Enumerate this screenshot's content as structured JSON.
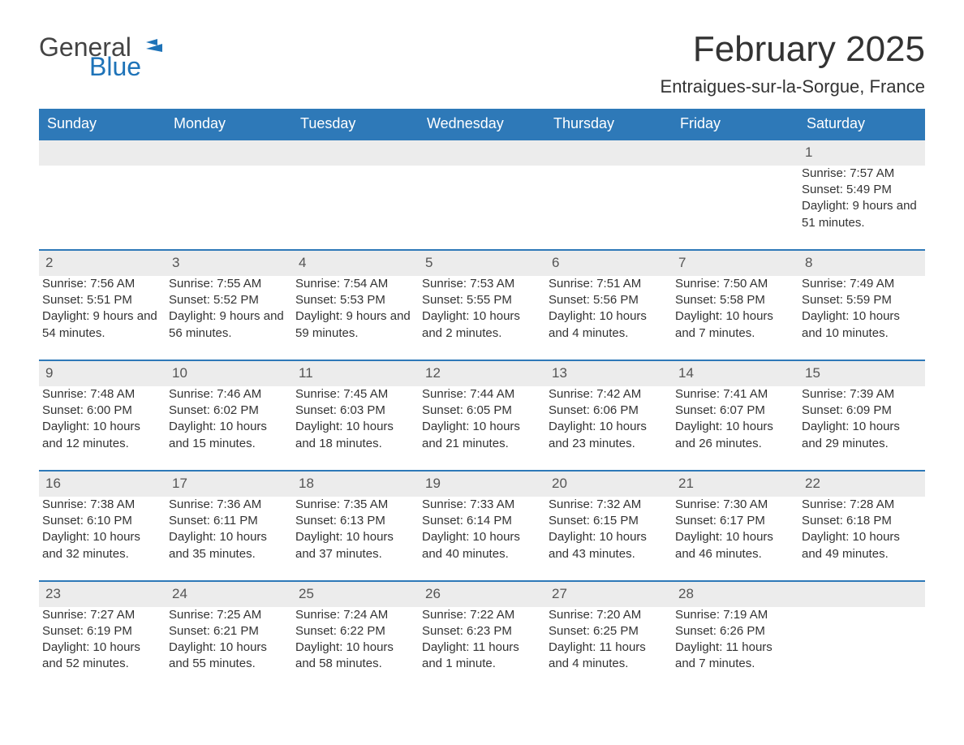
{
  "brand": {
    "part1": "General",
    "part2": "Blue",
    "color1": "#444444",
    "color2": "#1e73b8"
  },
  "title": "February 2025",
  "location": "Entraigues-sur-la-Sorgue, France",
  "colors": {
    "header_bg": "#2e79b8",
    "header_text": "#ffffff",
    "daynum_bg": "#ececec",
    "daynum_text": "#555555",
    "week_border": "#2e79b8",
    "body_text": "#333333",
    "background": "#ffffff"
  },
  "fonts": {
    "title_size": 44,
    "location_size": 22,
    "header_size": 18,
    "daynum_size": 17,
    "body_size": 15
  },
  "weekdays": [
    "Sunday",
    "Monday",
    "Tuesday",
    "Wednesday",
    "Thursday",
    "Friday",
    "Saturday"
  ],
  "labels": {
    "sunrise": "Sunrise: ",
    "sunset": "Sunset: ",
    "daylight": "Daylight: "
  },
  "weeks": [
    [
      null,
      null,
      null,
      null,
      null,
      null,
      {
        "n": "1",
        "sunrise": "7:57 AM",
        "sunset": "5:49 PM",
        "daylight": "9 hours and 51 minutes."
      }
    ],
    [
      {
        "n": "2",
        "sunrise": "7:56 AM",
        "sunset": "5:51 PM",
        "daylight": "9 hours and 54 minutes."
      },
      {
        "n": "3",
        "sunrise": "7:55 AM",
        "sunset": "5:52 PM",
        "daylight": "9 hours and 56 minutes."
      },
      {
        "n": "4",
        "sunrise": "7:54 AM",
        "sunset": "5:53 PM",
        "daylight": "9 hours and 59 minutes."
      },
      {
        "n": "5",
        "sunrise": "7:53 AM",
        "sunset": "5:55 PM",
        "daylight": "10 hours and 2 minutes."
      },
      {
        "n": "6",
        "sunrise": "7:51 AM",
        "sunset": "5:56 PM",
        "daylight": "10 hours and 4 minutes."
      },
      {
        "n": "7",
        "sunrise": "7:50 AM",
        "sunset": "5:58 PM",
        "daylight": "10 hours and 7 minutes."
      },
      {
        "n": "8",
        "sunrise": "7:49 AM",
        "sunset": "5:59 PM",
        "daylight": "10 hours and 10 minutes."
      }
    ],
    [
      {
        "n": "9",
        "sunrise": "7:48 AM",
        "sunset": "6:00 PM",
        "daylight": "10 hours and 12 minutes."
      },
      {
        "n": "10",
        "sunrise": "7:46 AM",
        "sunset": "6:02 PM",
        "daylight": "10 hours and 15 minutes."
      },
      {
        "n": "11",
        "sunrise": "7:45 AM",
        "sunset": "6:03 PM",
        "daylight": "10 hours and 18 minutes."
      },
      {
        "n": "12",
        "sunrise": "7:44 AM",
        "sunset": "6:05 PM",
        "daylight": "10 hours and 21 minutes."
      },
      {
        "n": "13",
        "sunrise": "7:42 AM",
        "sunset": "6:06 PM",
        "daylight": "10 hours and 23 minutes."
      },
      {
        "n": "14",
        "sunrise": "7:41 AM",
        "sunset": "6:07 PM",
        "daylight": "10 hours and 26 minutes."
      },
      {
        "n": "15",
        "sunrise": "7:39 AM",
        "sunset": "6:09 PM",
        "daylight": "10 hours and 29 minutes."
      }
    ],
    [
      {
        "n": "16",
        "sunrise": "7:38 AM",
        "sunset": "6:10 PM",
        "daylight": "10 hours and 32 minutes."
      },
      {
        "n": "17",
        "sunrise": "7:36 AM",
        "sunset": "6:11 PM",
        "daylight": "10 hours and 35 minutes."
      },
      {
        "n": "18",
        "sunrise": "7:35 AM",
        "sunset": "6:13 PM",
        "daylight": "10 hours and 37 minutes."
      },
      {
        "n": "19",
        "sunrise": "7:33 AM",
        "sunset": "6:14 PM",
        "daylight": "10 hours and 40 minutes."
      },
      {
        "n": "20",
        "sunrise": "7:32 AM",
        "sunset": "6:15 PM",
        "daylight": "10 hours and 43 minutes."
      },
      {
        "n": "21",
        "sunrise": "7:30 AM",
        "sunset": "6:17 PM",
        "daylight": "10 hours and 46 minutes."
      },
      {
        "n": "22",
        "sunrise": "7:28 AM",
        "sunset": "6:18 PM",
        "daylight": "10 hours and 49 minutes."
      }
    ],
    [
      {
        "n": "23",
        "sunrise": "7:27 AM",
        "sunset": "6:19 PM",
        "daylight": "10 hours and 52 minutes."
      },
      {
        "n": "24",
        "sunrise": "7:25 AM",
        "sunset": "6:21 PM",
        "daylight": "10 hours and 55 minutes."
      },
      {
        "n": "25",
        "sunrise": "7:24 AM",
        "sunset": "6:22 PM",
        "daylight": "10 hours and 58 minutes."
      },
      {
        "n": "26",
        "sunrise": "7:22 AM",
        "sunset": "6:23 PM",
        "daylight": "11 hours and 1 minute."
      },
      {
        "n": "27",
        "sunrise": "7:20 AM",
        "sunset": "6:25 PM",
        "daylight": "11 hours and 4 minutes."
      },
      {
        "n": "28",
        "sunrise": "7:19 AM",
        "sunset": "6:26 PM",
        "daylight": "11 hours and 7 minutes."
      },
      null
    ]
  ]
}
